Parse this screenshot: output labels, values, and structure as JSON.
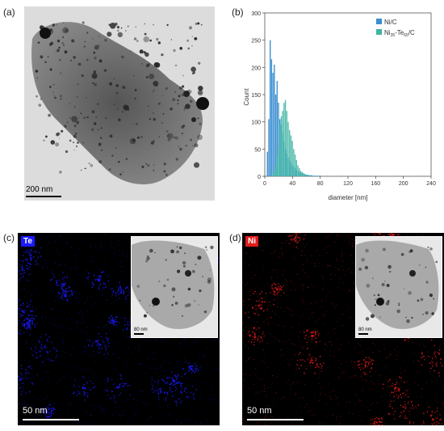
{
  "panels": {
    "a": {
      "label": "(a)",
      "scale_label": "200 nm"
    },
    "b": {
      "label": "(b)"
    },
    "c": {
      "label": "(c)",
      "element": "Te",
      "element_color": "#1a1aff",
      "scale_label": "50 nm",
      "inset_scale_label": "80 nm"
    },
    "d": {
      "label": "(d)",
      "element": "Ni",
      "element_color": "#e01b1b",
      "scale_label": "50 nm",
      "inset_scale_label": "80 nm"
    }
  },
  "chart_data": {
    "type": "bar",
    "title": "",
    "xlabel": "diameter [nm]",
    "ylabel": "Count",
    "xlim": [
      0,
      240
    ],
    "ylim": [
      0,
      300
    ],
    "xticks": [
      0,
      40,
      80,
      120,
      160,
      200,
      240
    ],
    "yticks": [
      0,
      50,
      100,
      150,
      200,
      250,
      300
    ],
    "legend_position": "top-right",
    "bin_width": 2,
    "series": [
      {
        "name": "Ni/C",
        "color": "#3b8fd1",
        "x": [
          4,
          6,
          8,
          10,
          12,
          14,
          16,
          18,
          20,
          22,
          24,
          26,
          28,
          30,
          32,
          34,
          36,
          38,
          40,
          42,
          44,
          46,
          48,
          50,
          52,
          54,
          56,
          58,
          60,
          62,
          64,
          66,
          68,
          70,
          72,
          74,
          76,
          78,
          80,
          90,
          110,
          130,
          160,
          190,
          225
        ],
        "values": [
          45,
          105,
          250,
          215,
          190,
          205,
          150,
          175,
          135,
          105,
          95,
          80,
          65,
          50,
          42,
          35,
          30,
          25,
          20,
          18,
          15,
          12,
          10,
          8,
          7,
          6,
          5,
          4,
          3,
          3,
          2,
          2,
          2,
          1,
          1,
          1,
          1,
          1,
          1,
          1,
          1,
          1,
          1,
          1,
          1
        ]
      },
      {
        "name": "Ni35-Te65/C",
        "name_base": "Ni",
        "name_sub1": "35",
        "name_mid": "-Te",
        "name_sub2": "65",
        "name_tail": "/C",
        "color": "#3fb5a3",
        "x": [
          10,
          12,
          14,
          16,
          18,
          20,
          22,
          24,
          26,
          28,
          30,
          32,
          34,
          36,
          38,
          40,
          42,
          44,
          46,
          48,
          50,
          52,
          54,
          56,
          58,
          60,
          62,
          64,
          66,
          70,
          74,
          80
        ],
        "values": [
          3,
          5,
          10,
          20,
          40,
          55,
          95,
          110,
          120,
          135,
          140,
          120,
          100,
          85,
          75,
          65,
          50,
          40,
          30,
          20,
          15,
          10,
          8,
          6,
          4,
          3,
          2,
          2,
          1,
          1,
          1,
          1
        ]
      }
    ]
  }
}
